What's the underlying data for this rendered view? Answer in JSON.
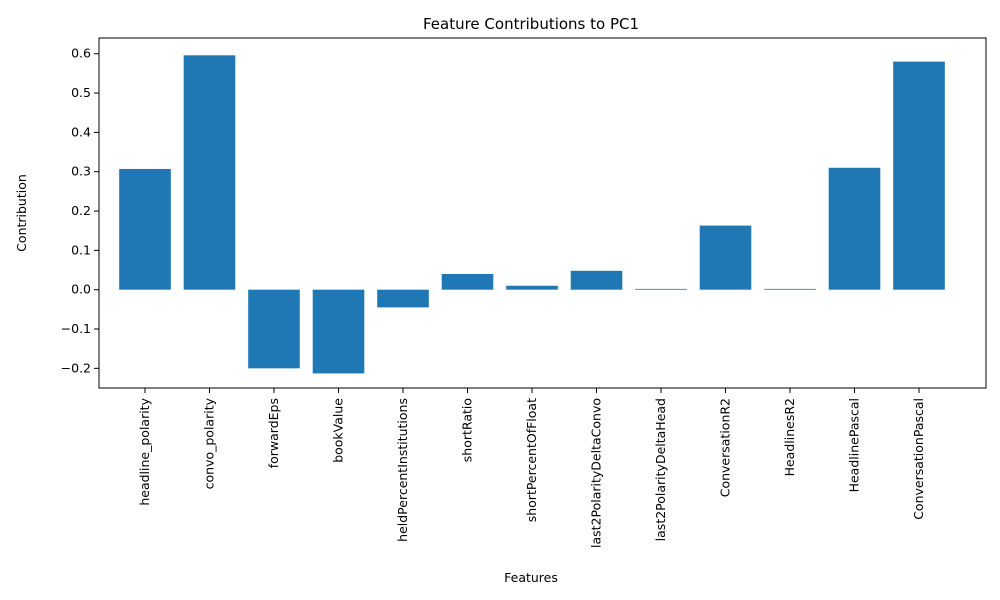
{
  "chart_data": {
    "type": "bar",
    "title": "Feature Contributions to PC1",
    "xlabel": "Features",
    "ylabel": "Contribution",
    "categories": [
      "headline_polarity",
      "convo_polarity",
      "forwardEps",
      "bookValue",
      "heldPercentInstitutions",
      "shortRatio",
      "shortPercentOfFloat",
      "last2PolarityDeltaConvo",
      "last2PolarityDeltaHead",
      "ConversationR2",
      "HeadlinesR2",
      "HeadlinePascal",
      "ConversationPascal"
    ],
    "values": [
      0.307,
      0.596,
      -0.2,
      -0.213,
      -0.045,
      0.04,
      0.01,
      0.048,
      0.002,
      0.163,
      0.002,
      0.31,
      0.58
    ],
    "ylim": [
      -0.25,
      0.64
    ],
    "yticks": [
      -0.2,
      -0.1,
      0.0,
      0.1,
      0.2,
      0.3,
      0.4,
      0.5,
      0.6
    ],
    "ytick_labels": [
      "−0.2",
      "−0.1",
      "0.0",
      "0.1",
      "0.2",
      "0.3",
      "0.4",
      "0.5",
      "0.6"
    ],
    "grid": false,
    "bar_color": "#1f77b4"
  }
}
